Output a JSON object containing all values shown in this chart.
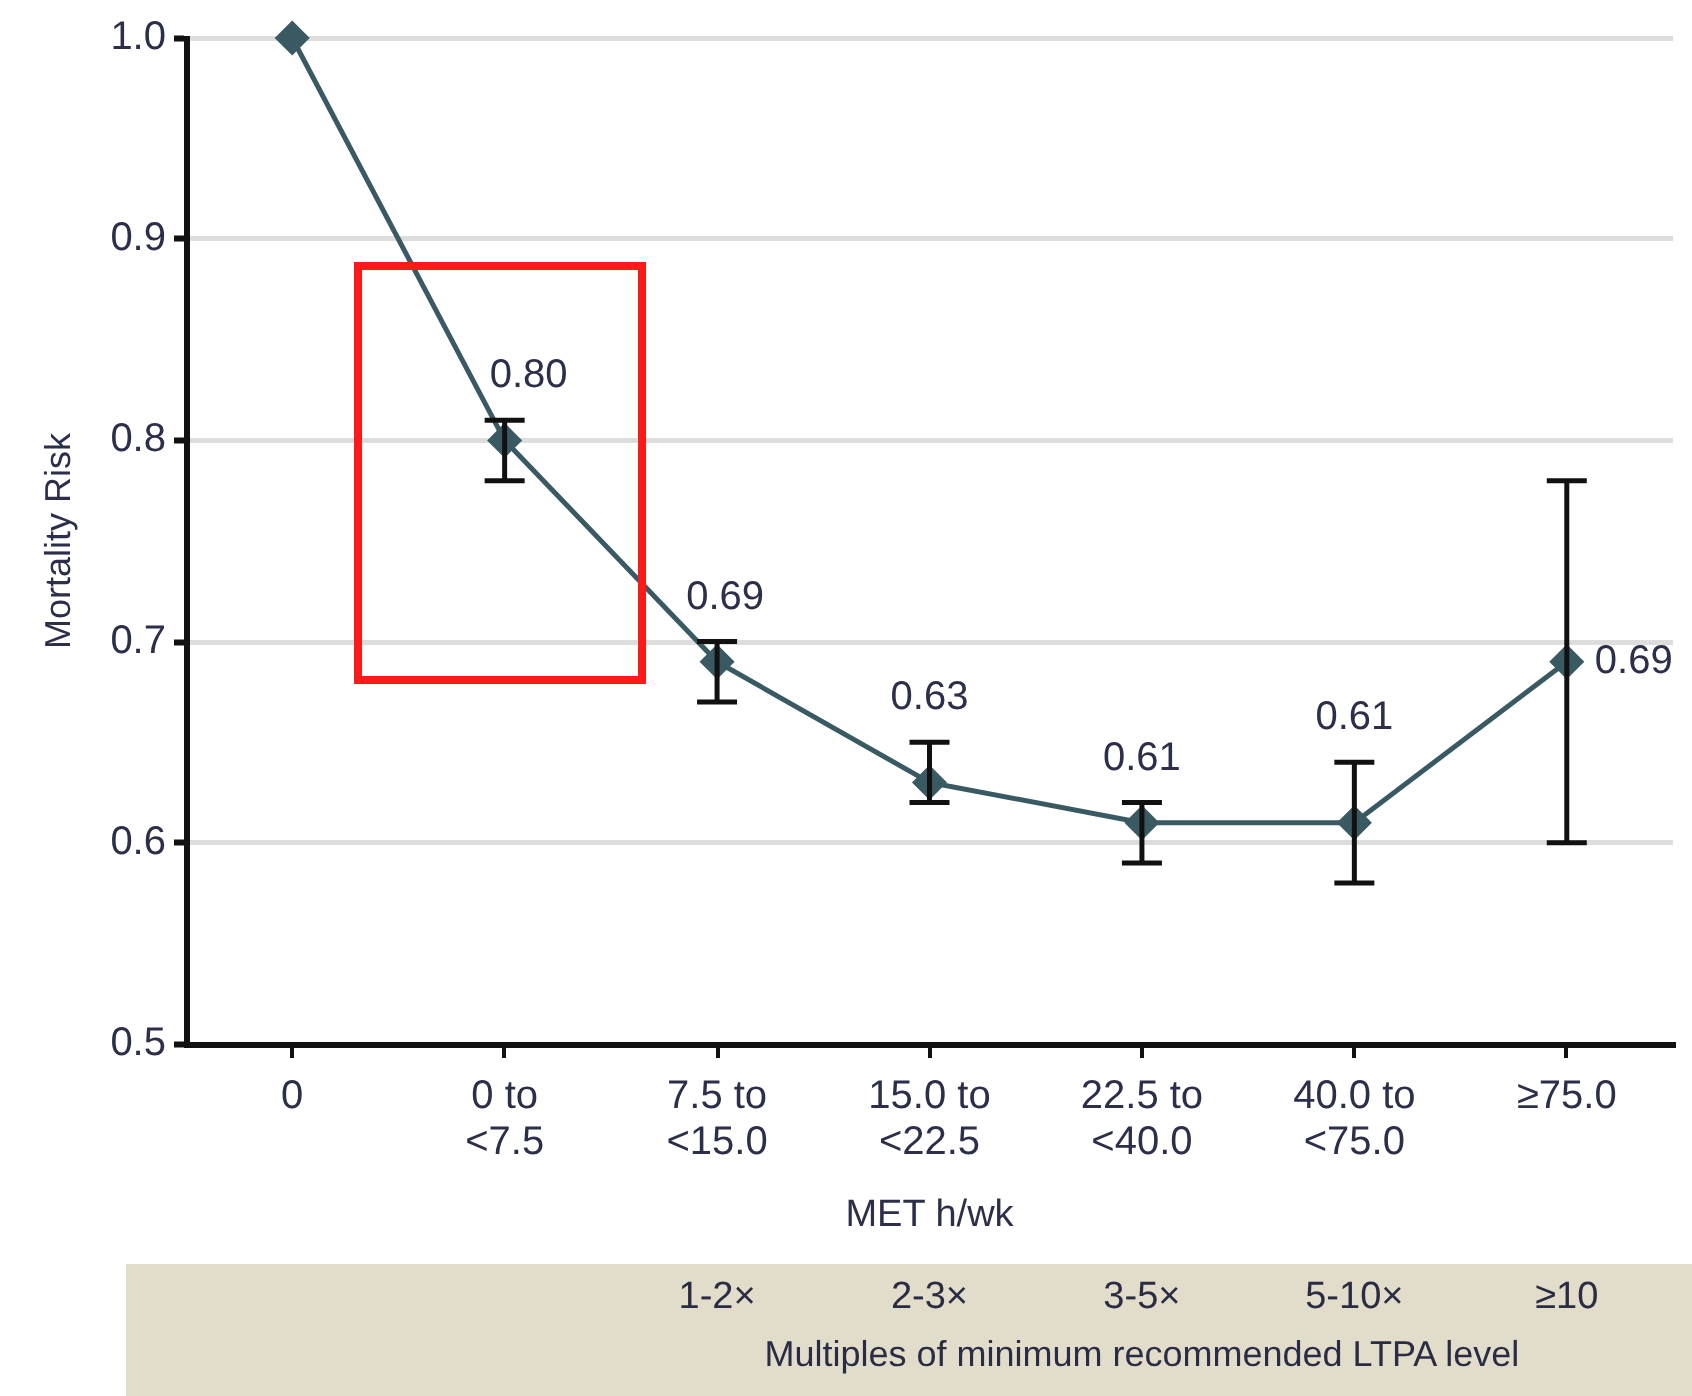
{
  "chart_data": {
    "type": "line",
    "xlabel": "MET h/wk",
    "ylabel": "Mortality Risk",
    "categories": [
      "0",
      "0 to\n<7.5",
      "7.5 to\n<15.0",
      "15.0 to\n<22.5",
      "22.5 to\n<40.0",
      "40.0 to\n<75.0",
      "≥75.0"
    ],
    "series": [
      {
        "color": "#3a5a63",
        "values": [
          1.0,
          0.8,
          0.69,
          0.63,
          0.61,
          0.61,
          0.69
        ],
        "errors": [
          null,
          [
            0.78,
            0.81
          ],
          [
            0.67,
            0.7
          ],
          [
            0.62,
            0.65
          ],
          [
            0.59,
            0.62
          ],
          [
            0.58,
            0.64
          ],
          [
            0.6,
            0.78
          ]
        ],
        "value_labels": [
          null,
          "0.80",
          "0.69",
          "0.63",
          "0.61",
          "0.61",
          "0.69"
        ]
      }
    ],
    "ylim": [
      0.5,
      1.0
    ],
    "yticks": [
      0.5,
      0.6,
      0.7,
      0.8,
      0.9,
      {
        "value": 1.0,
        "label": "1.0"
      }
    ],
    "grid": "y",
    "legend": false,
    "marker": "diamond",
    "line_style": "solid",
    "annotations": [
      "1-2×",
      "2-3×",
      "3-5×",
      "5-10×",
      "≥10",
      "Multiples of minimum recommended LTPA level"
    ]
  }
}
